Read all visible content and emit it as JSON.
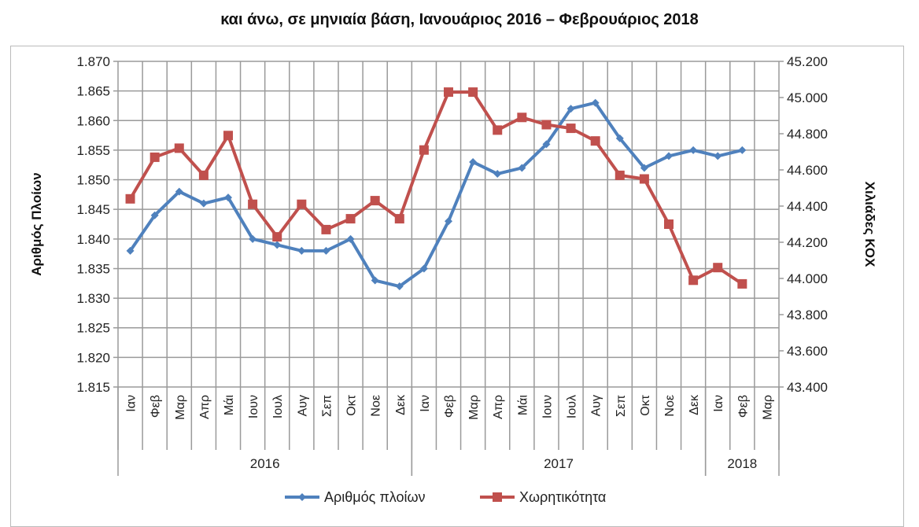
{
  "chart_data": {
    "type": "line",
    "title": "και άνω, σε μηνιαία βάση, Ιανουάριος  2016 – Φεβρουάριος  2018",
    "categories": [
      "Ιαν",
      "Φεβ",
      "Μαρ",
      "Απρ",
      "Μάι",
      "Ιουν",
      "Ιουλ",
      "Αυγ",
      "Σεπ",
      "Οκτ",
      "Νοε",
      "Δεκ",
      "Ιαν",
      "Φεβ",
      "Μαρ",
      "Απρ",
      "Μάι",
      "Ιουν",
      "Ιουλ",
      "Αυγ",
      "Σεπ",
      "Οκτ",
      "Νοε",
      "Δεκ",
      "Ιαν",
      "Φεβ",
      "Μαρ"
    ],
    "year_groups": [
      {
        "label": "2016",
        "count": 12
      },
      {
        "label": "2017",
        "count": 12
      },
      {
        "label": "2018",
        "count": 3
      }
    ],
    "ylabel": "Αριθμός Πλοίων",
    "y2label": "Χιλιάδες ΚΟΧ",
    "ylim": [
      1.815,
      1.87
    ],
    "y2lim": [
      43.4,
      45.2
    ],
    "yticks": [
      "1.815",
      "1.820",
      "1.825",
      "1.830",
      "1.835",
      "1.840",
      "1.845",
      "1.850",
      "1.855",
      "1.860",
      "1.865",
      "1.870"
    ],
    "y2ticks": [
      "43.400",
      "43.600",
      "43.800",
      "44.000",
      "44.200",
      "44.400",
      "44.600",
      "44.800",
      "45.000",
      "45.200"
    ],
    "grid": true,
    "legend_position": "bottom",
    "series": [
      {
        "name": "Αριθμός πλοίων",
        "axis": "left",
        "color": "#4f81bd",
        "marker": "diamond",
        "values": [
          1.838,
          1.844,
          1.848,
          1.846,
          1.847,
          1.84,
          1.839,
          1.838,
          1.838,
          1.84,
          1.833,
          1.832,
          1.835,
          1.843,
          1.853,
          1.851,
          1.852,
          1.856,
          1.862,
          1.863,
          1.857,
          1.852,
          1.854,
          1.855,
          1.854,
          1.855,
          null
        ]
      },
      {
        "name": "Χωρητικότητα",
        "axis": "right",
        "color": "#c0504d",
        "marker": "square",
        "values": [
          44.44,
          44.67,
          44.72,
          44.57,
          44.79,
          44.41,
          44.23,
          44.41,
          44.27,
          44.33,
          44.43,
          44.33,
          44.71,
          45.03,
          45.03,
          44.82,
          44.89,
          44.85,
          44.83,
          44.76,
          44.57,
          44.55,
          44.3,
          43.99,
          44.06,
          43.97,
          null
        ]
      }
    ]
  }
}
